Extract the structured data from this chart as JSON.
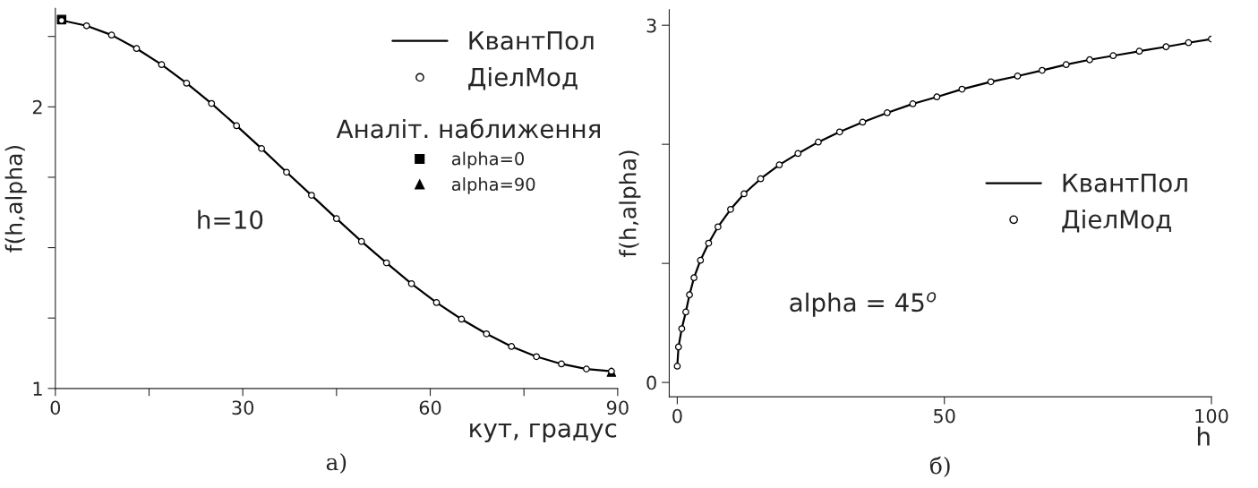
{
  "chart_data": [
    {
      "type": "line",
      "xlabel": "кут, градус",
      "ylabel": "f(h,alpha)",
      "legend": "top right",
      "legend_title": "Аналіт. наближення",
      "xlim": [
        0,
        90
      ],
      "xticks": [
        0,
        {
          "value": 15,
          "label": null
        },
        30,
        {
          "value": 45,
          "label": null
        },
        60,
        {
          "value": 75,
          "label": null
        },
        90
      ],
      "ylim": [
        1,
        2.35
      ],
      "yticks": [
        1,
        {
          "value": 1.25,
          "label": null
        },
        {
          "value": 1.5,
          "label": null
        },
        {
          "value": 1.75,
          "label": null
        },
        2,
        {
          "value": 2.25,
          "label": null
        }
      ],
      "grid": false,
      "annotations": [
        "h=10",
        "а)"
      ],
      "series": [
        {
          "name": "КвантПол",
          "type": "line",
          "color": "#000000",
          "marker": "none",
          "x": [
            1,
            5,
            9,
            13,
            17,
            21,
            25,
            29,
            33,
            37,
            41,
            45,
            49,
            53,
            57,
            61,
            65,
            69,
            73,
            77,
            81,
            85,
            89
          ],
          "values": [
            2.307,
            2.288,
            2.255,
            2.207,
            2.15,
            2.084,
            2.012,
            1.933,
            1.852,
            1.768,
            1.686,
            1.603,
            1.522,
            1.446,
            1.372,
            1.305,
            1.246,
            1.194,
            1.149,
            1.113,
            1.087,
            1.069,
            1.061
          ]
        },
        {
          "name": "ДіелМод",
          "type": "scatter",
          "color": "#000000",
          "marker": "circle",
          "x": [
            1,
            5,
            9,
            13,
            17,
            21,
            25,
            29,
            33,
            37,
            41,
            45,
            49,
            53,
            57,
            61,
            65,
            69,
            73,
            77,
            81,
            85,
            89
          ],
          "values": [
            2.307,
            2.288,
            2.255,
            2.207,
            2.15,
            2.084,
            2.012,
            1.933,
            1.852,
            1.768,
            1.686,
            1.603,
            1.522,
            1.446,
            1.372,
            1.305,
            1.246,
            1.194,
            1.149,
            1.113,
            1.087,
            1.069,
            1.061
          ]
        },
        {
          "name": "alpha=0",
          "type": "scatter",
          "color": "#000000",
          "marker": "square",
          "x": [
            1
          ],
          "values": [
            2.31
          ]
        },
        {
          "name": "alpha=90",
          "type": "scatter",
          "color": "#000000",
          "marker": "triangle",
          "x": [
            89
          ],
          "values": [
            1.058
          ]
        }
      ]
    },
    {
      "type": "line",
      "xlabel": "h",
      "ylabel": "f(h,alpha)",
      "legend": "center right",
      "xlim": [
        -1.5,
        100
      ],
      "xticks": [
        0,
        50,
        100
      ],
      "ylim": [
        -0.12,
        3.13
      ],
      "yticks": [
        0,
        {
          "value": 1,
          "label": null
        },
        {
          "value": 2,
          "label": null
        },
        3
      ],
      "grid": false,
      "annotations": [
        "alpha = 45$^{o}$",
        "б)"
      ],
      "series": [
        {
          "name": "КвантПол",
          "type": "line",
          "color": "#000000",
          "marker": "none",
          "x": [
            0,
            0.23,
            0.84,
            1.6,
            2.29,
            3.13,
            4.34,
            5.87,
            7.62,
            9.98,
            12.5,
            15.6,
            19.1,
            22.6,
            26.4,
            30.4,
            34.7,
            39.3,
            44.1,
            48.6,
            53.3,
            58.7,
            63.7,
            68.3,
            72.8,
            77.2,
            81.6,
            86.5,
            91.5,
            95.7,
            100
          ],
          "values": [
            0.137,
            0.298,
            0.452,
            0.592,
            0.736,
            0.879,
            1.026,
            1.17,
            1.307,
            1.454,
            1.584,
            1.71,
            1.827,
            1.923,
            2.019,
            2.104,
            2.186,
            2.265,
            2.34,
            2.398,
            2.463,
            2.525,
            2.573,
            2.621,
            2.669,
            2.71,
            2.744,
            2.782,
            2.819,
            2.853,
            2.884
          ]
        },
        {
          "name": "ДіелМод",
          "type": "scatter",
          "color": "#000000",
          "marker": "circle",
          "x": [
            0,
            0.23,
            0.84,
            1.6,
            2.29,
            3.13,
            4.34,
            5.87,
            7.62,
            9.98,
            12.5,
            15.6,
            19.1,
            22.6,
            26.4,
            30.4,
            34.7,
            39.3,
            44.1,
            48.6,
            53.3,
            58.7,
            63.7,
            68.3,
            72.8,
            77.2,
            81.6,
            86.5,
            91.5,
            95.7,
            100
          ],
          "values": [
            0.137,
            0.298,
            0.452,
            0.592,
            0.736,
            0.879,
            1.026,
            1.17,
            1.307,
            1.454,
            1.584,
            1.71,
            1.827,
            1.923,
            2.019,
            2.104,
            2.186,
            2.265,
            2.34,
            2.398,
            2.463,
            2.525,
            2.573,
            2.621,
            2.669,
            2.71,
            2.744,
            2.782,
            2.819,
            2.853,
            2.884
          ]
        }
      ]
    }
  ]
}
